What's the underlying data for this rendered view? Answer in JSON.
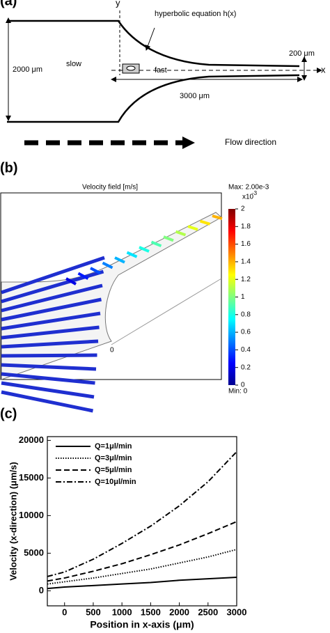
{
  "panel_a": {
    "label": "(a)",
    "y_label": "y",
    "equation": "hyperbolic equation  h(x)",
    "width": "2000 μm",
    "slow": "slow",
    "fast": "fast",
    "outlet": "200 μm",
    "x_label": "x",
    "length": "3000 μm",
    "flow": "Flow direction"
  },
  "panel_b": {
    "label": "(b)",
    "title": "Velocity field [m/s]",
    "max": "Max: 2.00e-3",
    "multiplier": "x10",
    "exponent": "-3",
    "min": "Min: 0",
    "origin": "0",
    "colorbar": {
      "lim": [
        0,
        2
      ],
      "ticks": [
        0,
        0.2,
        0.4,
        0.6,
        0.8,
        1,
        1.2,
        1.4,
        1.6,
        1.8,
        2
      ]
    }
  },
  "panel_c_label": "(c)",
  "chart_data": {
    "type": "line",
    "x_label": "Position in x-axis (μm)",
    "y_label": "Velocity (x-direction) (μm/s)",
    "x": [
      -300,
      0,
      500,
      1000,
      1500,
      2000,
      2500,
      3000
    ],
    "series": [
      {
        "name": "Q=1μl/min",
        "color": "#000",
        "dash": "solid",
        "values": [
          300,
          500,
          700,
          900,
          1100,
          1400,
          1600,
          1800
        ]
      },
      {
        "name": "Q=3μl/min",
        "color": "#000",
        "dash": "dotted",
        "values": [
          900,
          1200,
          1700,
          2300,
          2900,
          3700,
          4500,
          5500
        ]
      },
      {
        "name": "Q=5μl/min",
        "color": "#000",
        "dash": "dashed",
        "values": [
          1300,
          1700,
          2600,
          3600,
          4800,
          6100,
          7600,
          9200
        ]
      },
      {
        "name": "Q=10μl/min",
        "color": "#000",
        "dash": "dashdot",
        "values": [
          1900,
          2500,
          4200,
          6300,
          8600,
          11300,
          14500,
          18500
        ]
      }
    ],
    "xlim": [
      -300,
      3000
    ],
    "xticks": [
      0,
      500,
      1000,
      1500,
      2000,
      2500,
      3000
    ],
    "ylim": [
      -2000,
      20500
    ],
    "yticks": [
      0,
      5000,
      10000,
      15000,
      20000
    ],
    "legend": "upper-left"
  }
}
